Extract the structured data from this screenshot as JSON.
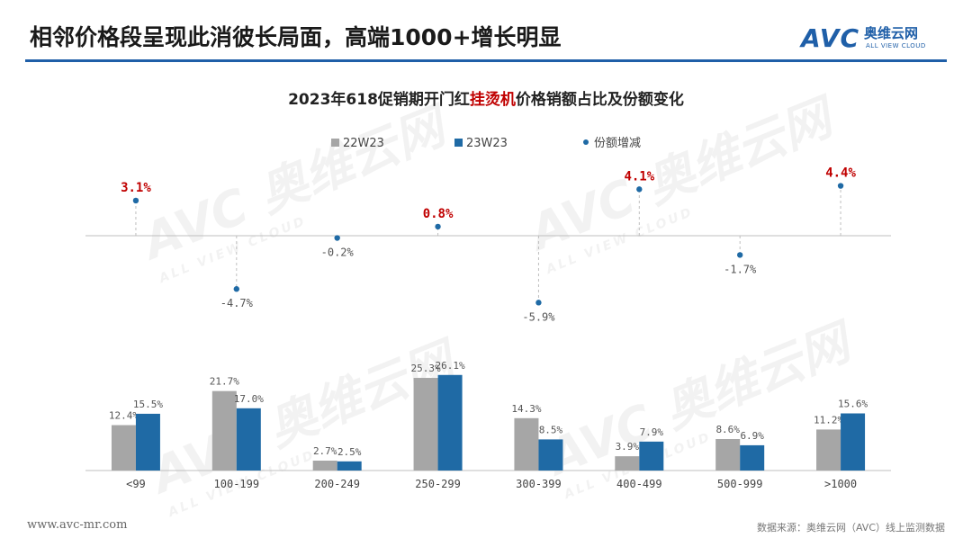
{
  "header": {
    "title": "相邻价格段呈现此消彼长局面，高端1000+增长明显",
    "logo_mark": "AVC",
    "logo_cn": "奥维云网",
    "logo_en": "ALL VIEW CLOUD"
  },
  "chart_data": {
    "type": "bar",
    "title_parts": [
      "2023年618促销期开门红",
      "挂烫机",
      "价格销额占比及份额变化"
    ],
    "categories": [
      "<99",
      "100-199",
      "200-249",
      "250-299",
      "300-399",
      "400-499",
      "500-999",
      ">1000"
    ],
    "series": [
      {
        "name": "22W23",
        "values": [
          12.4,
          21.7,
          2.7,
          25.3,
          14.3,
          3.9,
          8.6,
          11.2
        ],
        "color": "#a6a6a6"
      },
      {
        "name": "23W23",
        "values": [
          15.5,
          17.0,
          2.5,
          26.1,
          8.5,
          7.9,
          6.9,
          15.6
        ],
        "color": "#1f6aa5"
      }
    ],
    "share_change": {
      "name": "份额增减",
      "values": [
        3.1,
        -4.7,
        -0.2,
        0.8,
        -5.9,
        4.1,
        -1.7,
        4.4
      ],
      "color": "#1f6aa5",
      "highlight_color": "#c00000"
    },
    "bar_ylim": [
      0,
      30
    ],
    "change_ylim": [
      -8,
      6
    ],
    "legend_position": "top",
    "grid": false
  },
  "watermark": {
    "mark": "AVC",
    "cn": "奥维云网",
    "en": "ALL VIEW CLOUD"
  },
  "footer": {
    "website": "www.avc-mr.com",
    "source": "数据来源：奥维云网（AVC）线上监测数据"
  }
}
